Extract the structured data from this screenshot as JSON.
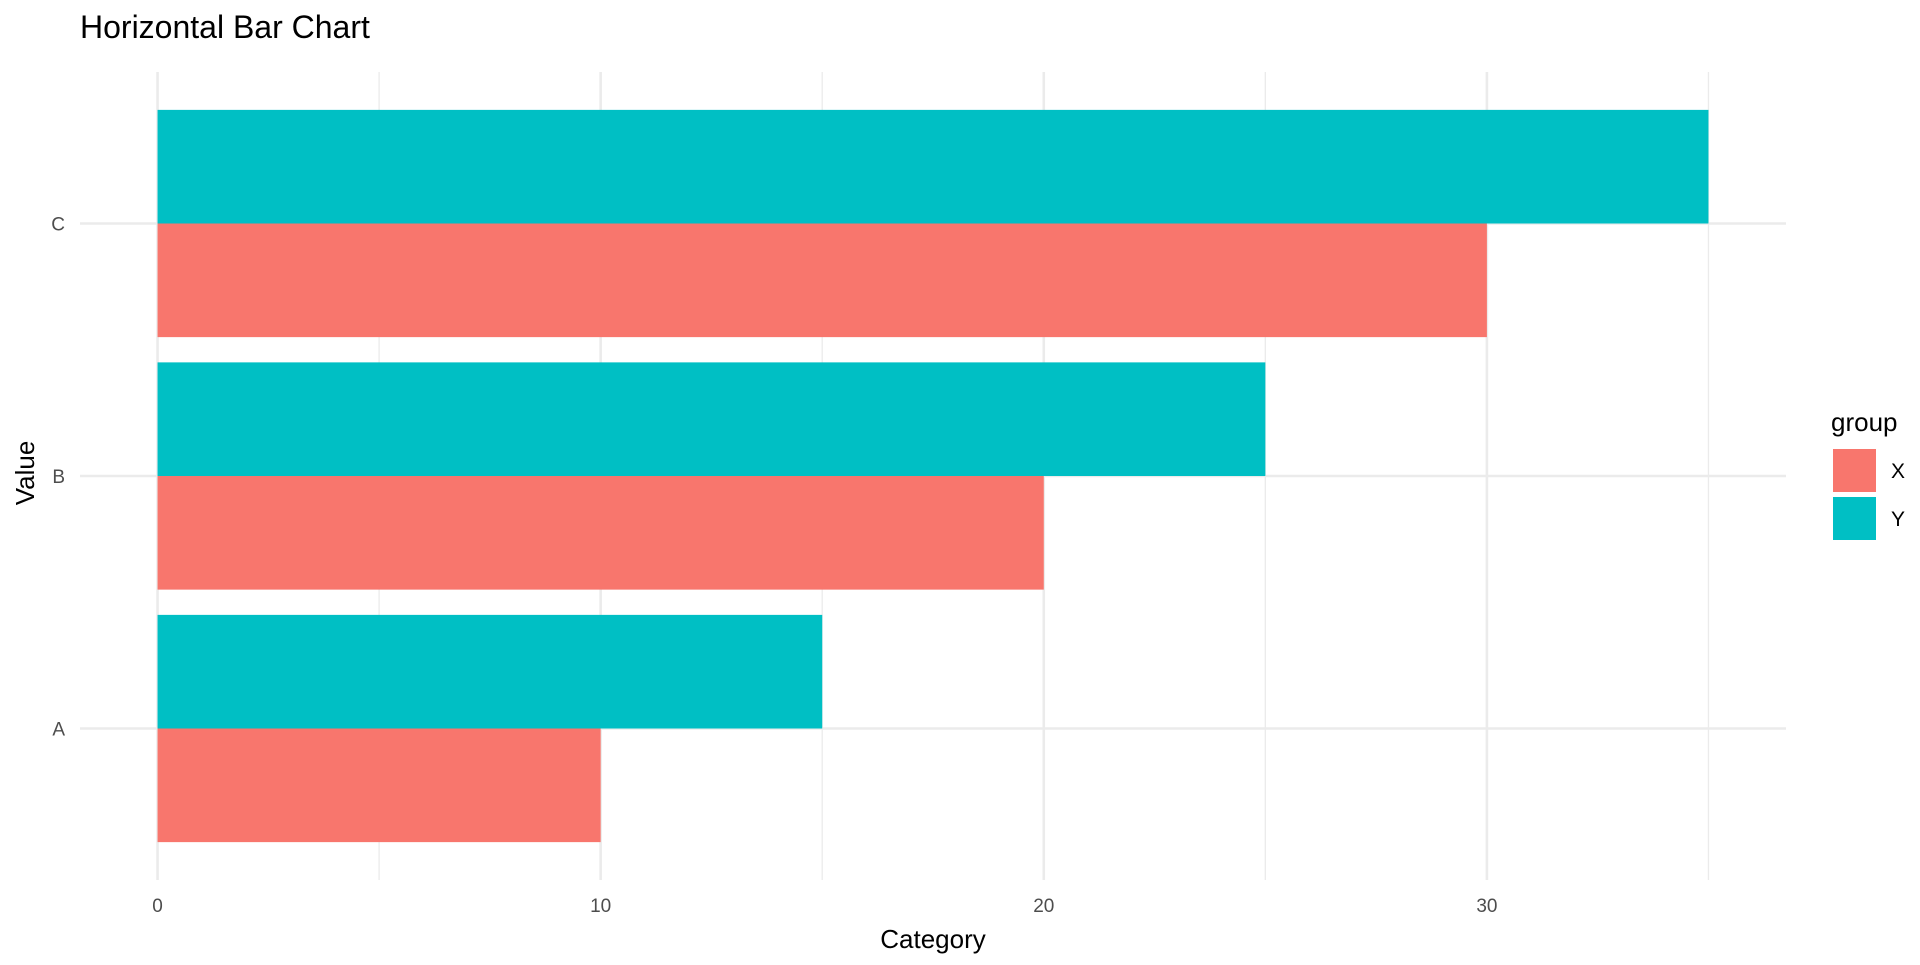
{
  "chart_data": {
    "type": "bar",
    "orientation": "horizontal",
    "title": "Horizontal Bar Chart",
    "xlabel": "Category",
    "ylabel": "Value",
    "categories": [
      "A",
      "B",
      "C"
    ],
    "series": [
      {
        "name": "X",
        "color": "#F8766D",
        "values": [
          10,
          20,
          30
        ]
      },
      {
        "name": "Y",
        "color": "#00BFC4",
        "values": [
          15,
          25,
          35
        ]
      }
    ],
    "xlim": [
      -1.75,
      36.75
    ],
    "xticks": [
      0,
      10,
      20,
      30
    ],
    "xminor": [
      5,
      15,
      25,
      35
    ],
    "legend": {
      "title": "group",
      "placement": "right"
    },
    "grid": true
  }
}
